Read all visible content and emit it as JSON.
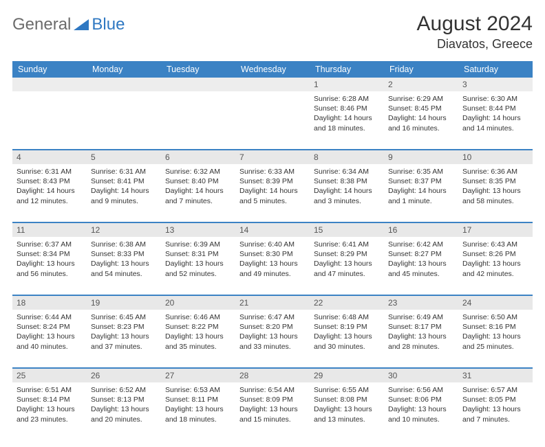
{
  "brand": {
    "word1": "General",
    "word2": "Blue"
  },
  "title": "August 2024",
  "location": "Diavatos, Greece",
  "colors": {
    "header_bg": "#3b82c4",
    "header_fg": "#ffffff",
    "numrow_bg": "#e8e8e8",
    "accent_border": "#3b82c4",
    "text": "#333333",
    "logo_gray": "#6b6b6b",
    "logo_blue": "#2f78c2"
  },
  "day_names": [
    "Sunday",
    "Monday",
    "Tuesday",
    "Wednesday",
    "Thursday",
    "Friday",
    "Saturday"
  ],
  "weeks": [
    {
      "nums": [
        "",
        "",
        "",
        "",
        "1",
        "2",
        "3"
      ],
      "cells": [
        null,
        null,
        null,
        null,
        {
          "sunrise": "Sunrise: 6:28 AM",
          "sunset": "Sunset: 8:46 PM",
          "day1": "Daylight: 14 hours",
          "day2": "and 18 minutes."
        },
        {
          "sunrise": "Sunrise: 6:29 AM",
          "sunset": "Sunset: 8:45 PM",
          "day1": "Daylight: 14 hours",
          "day2": "and 16 minutes."
        },
        {
          "sunrise": "Sunrise: 6:30 AM",
          "sunset": "Sunset: 8:44 PM",
          "day1": "Daylight: 14 hours",
          "day2": "and 14 minutes."
        }
      ]
    },
    {
      "nums": [
        "4",
        "5",
        "6",
        "7",
        "8",
        "9",
        "10"
      ],
      "cells": [
        {
          "sunrise": "Sunrise: 6:31 AM",
          "sunset": "Sunset: 8:43 PM",
          "day1": "Daylight: 14 hours",
          "day2": "and 12 minutes."
        },
        {
          "sunrise": "Sunrise: 6:31 AM",
          "sunset": "Sunset: 8:41 PM",
          "day1": "Daylight: 14 hours",
          "day2": "and 9 minutes."
        },
        {
          "sunrise": "Sunrise: 6:32 AM",
          "sunset": "Sunset: 8:40 PM",
          "day1": "Daylight: 14 hours",
          "day2": "and 7 minutes."
        },
        {
          "sunrise": "Sunrise: 6:33 AM",
          "sunset": "Sunset: 8:39 PM",
          "day1": "Daylight: 14 hours",
          "day2": "and 5 minutes."
        },
        {
          "sunrise": "Sunrise: 6:34 AM",
          "sunset": "Sunset: 8:38 PM",
          "day1": "Daylight: 14 hours",
          "day2": "and 3 minutes."
        },
        {
          "sunrise": "Sunrise: 6:35 AM",
          "sunset": "Sunset: 8:37 PM",
          "day1": "Daylight: 14 hours",
          "day2": "and 1 minute."
        },
        {
          "sunrise": "Sunrise: 6:36 AM",
          "sunset": "Sunset: 8:35 PM",
          "day1": "Daylight: 13 hours",
          "day2": "and 58 minutes."
        }
      ]
    },
    {
      "nums": [
        "11",
        "12",
        "13",
        "14",
        "15",
        "16",
        "17"
      ],
      "cells": [
        {
          "sunrise": "Sunrise: 6:37 AM",
          "sunset": "Sunset: 8:34 PM",
          "day1": "Daylight: 13 hours",
          "day2": "and 56 minutes."
        },
        {
          "sunrise": "Sunrise: 6:38 AM",
          "sunset": "Sunset: 8:33 PM",
          "day1": "Daylight: 13 hours",
          "day2": "and 54 minutes."
        },
        {
          "sunrise": "Sunrise: 6:39 AM",
          "sunset": "Sunset: 8:31 PM",
          "day1": "Daylight: 13 hours",
          "day2": "and 52 minutes."
        },
        {
          "sunrise": "Sunrise: 6:40 AM",
          "sunset": "Sunset: 8:30 PM",
          "day1": "Daylight: 13 hours",
          "day2": "and 49 minutes."
        },
        {
          "sunrise": "Sunrise: 6:41 AM",
          "sunset": "Sunset: 8:29 PM",
          "day1": "Daylight: 13 hours",
          "day2": "and 47 minutes."
        },
        {
          "sunrise": "Sunrise: 6:42 AM",
          "sunset": "Sunset: 8:27 PM",
          "day1": "Daylight: 13 hours",
          "day2": "and 45 minutes."
        },
        {
          "sunrise": "Sunrise: 6:43 AM",
          "sunset": "Sunset: 8:26 PM",
          "day1": "Daylight: 13 hours",
          "day2": "and 42 minutes."
        }
      ]
    },
    {
      "nums": [
        "18",
        "19",
        "20",
        "21",
        "22",
        "23",
        "24"
      ],
      "cells": [
        {
          "sunrise": "Sunrise: 6:44 AM",
          "sunset": "Sunset: 8:24 PM",
          "day1": "Daylight: 13 hours",
          "day2": "and 40 minutes."
        },
        {
          "sunrise": "Sunrise: 6:45 AM",
          "sunset": "Sunset: 8:23 PM",
          "day1": "Daylight: 13 hours",
          "day2": "and 37 minutes."
        },
        {
          "sunrise": "Sunrise: 6:46 AM",
          "sunset": "Sunset: 8:22 PM",
          "day1": "Daylight: 13 hours",
          "day2": "and 35 minutes."
        },
        {
          "sunrise": "Sunrise: 6:47 AM",
          "sunset": "Sunset: 8:20 PM",
          "day1": "Daylight: 13 hours",
          "day2": "and 33 minutes."
        },
        {
          "sunrise": "Sunrise: 6:48 AM",
          "sunset": "Sunset: 8:19 PM",
          "day1": "Daylight: 13 hours",
          "day2": "and 30 minutes."
        },
        {
          "sunrise": "Sunrise: 6:49 AM",
          "sunset": "Sunset: 8:17 PM",
          "day1": "Daylight: 13 hours",
          "day2": "and 28 minutes."
        },
        {
          "sunrise": "Sunrise: 6:50 AM",
          "sunset": "Sunset: 8:16 PM",
          "day1": "Daylight: 13 hours",
          "day2": "and 25 minutes."
        }
      ]
    },
    {
      "nums": [
        "25",
        "26",
        "27",
        "28",
        "29",
        "30",
        "31"
      ],
      "cells": [
        {
          "sunrise": "Sunrise: 6:51 AM",
          "sunset": "Sunset: 8:14 PM",
          "day1": "Daylight: 13 hours",
          "day2": "and 23 minutes."
        },
        {
          "sunrise": "Sunrise: 6:52 AM",
          "sunset": "Sunset: 8:13 PM",
          "day1": "Daylight: 13 hours",
          "day2": "and 20 minutes."
        },
        {
          "sunrise": "Sunrise: 6:53 AM",
          "sunset": "Sunset: 8:11 PM",
          "day1": "Daylight: 13 hours",
          "day2": "and 18 minutes."
        },
        {
          "sunrise": "Sunrise: 6:54 AM",
          "sunset": "Sunset: 8:09 PM",
          "day1": "Daylight: 13 hours",
          "day2": "and 15 minutes."
        },
        {
          "sunrise": "Sunrise: 6:55 AM",
          "sunset": "Sunset: 8:08 PM",
          "day1": "Daylight: 13 hours",
          "day2": "and 13 minutes."
        },
        {
          "sunrise": "Sunrise: 6:56 AM",
          "sunset": "Sunset: 8:06 PM",
          "day1": "Daylight: 13 hours",
          "day2": "and 10 minutes."
        },
        {
          "sunrise": "Sunrise: 6:57 AM",
          "sunset": "Sunset: 8:05 PM",
          "day1": "Daylight: 13 hours",
          "day2": "and 7 minutes."
        }
      ]
    }
  ]
}
